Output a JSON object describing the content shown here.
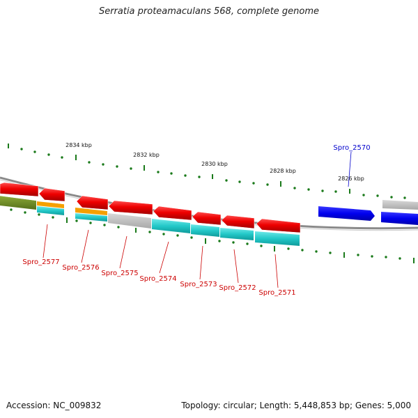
{
  "title": "Serratia proteamaculans 568, complete genome",
  "footer": {
    "accession": "Accession: NC_009832",
    "summary": "Topology: circular; Length: 5,448,853 bp; Genes: 5,000"
  },
  "ruler": {
    "kbp_labels": [
      "2834 kbp",
      "2832 kbp",
      "2830 kbp",
      "2828 kbp",
      "2826 kbp"
    ]
  },
  "genes": [
    {
      "name": "Spro_2570",
      "color": "#0000cc"
    },
    {
      "name": "Spro_2571",
      "color": "#cc0000"
    },
    {
      "name": "Spro_2572",
      "color": "#cc0000"
    },
    {
      "name": "Spro_2573",
      "color": "#cc0000"
    },
    {
      "name": "Spro_2574",
      "color": "#cc0000"
    },
    {
      "name": "Spro_2575",
      "color": "#cc0000"
    },
    {
      "name": "Spro_2576",
      "color": "#cc0000"
    },
    {
      "name": "Spro_2577",
      "color": "#cc0000"
    }
  ],
  "colors": {
    "gene_red": "#ee0000",
    "gene_blue": "#0000ee",
    "cds_cyan": "#22c8c8",
    "cds_gray": "#bdbdbd",
    "cds_orange": "#f5a000",
    "cds_olive": "#6f8f20",
    "backbone": "#888888",
    "tick_green": "#1b7a1b"
  }
}
